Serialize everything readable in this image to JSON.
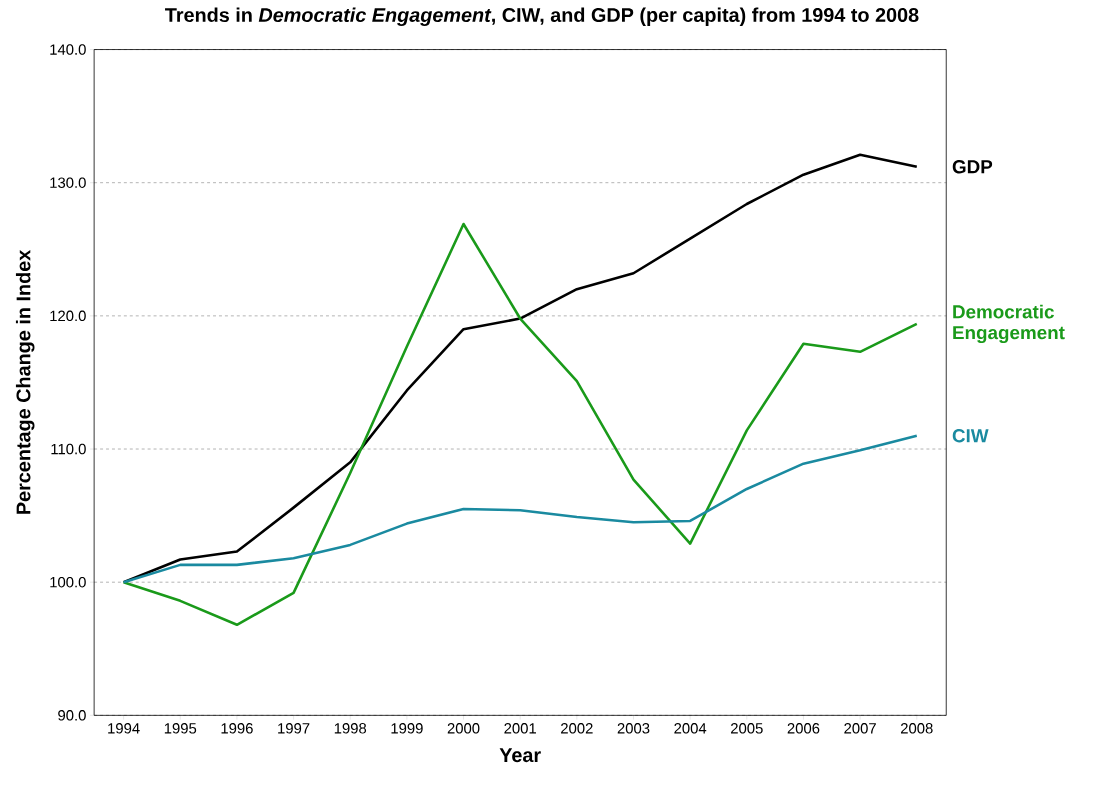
{
  "chart_data": {
    "type": "line",
    "title": "Trends in *Democratic Engagement*, CIW, and GDP (per capita) from 1994 to 2008",
    "xlabel": "Year",
    "ylabel": "Percentage  Change in Index",
    "categories": [
      "1994",
      "1995",
      "1996",
      "1997",
      "1998",
      "1999",
      "2000",
      "2001",
      "2002",
      "2003",
      "2004",
      "2005",
      "2006",
      "2007",
      "2008"
    ],
    "series": [
      {
        "name": "GDP",
        "color": "#000000",
        "values": [
          100,
          101.7,
          102.3,
          105.6,
          109.0,
          114.4,
          119.0,
          119.8,
          122.0,
          123.2,
          125.8,
          128.4,
          130.6,
          132.1,
          131.2
        ]
      },
      {
        "name": "Democratic Engagement",
        "color": "#1a9a1a",
        "values": [
          100,
          98.6,
          96.8,
          99.2,
          108.2,
          117.7,
          126.9,
          119.8,
          115.1,
          107.7,
          102.9,
          111.4,
          117.9,
          117.3,
          119.4
        ]
      },
      {
        "name": "CIW",
        "color": "#1a8aa0",
        "values": [
          100,
          101.3,
          101.3,
          101.8,
          102.8,
          104.4,
          105.5,
          105.4,
          104.9,
          104.5,
          104.6,
          107.0,
          108.9,
          109.9,
          111.0
        ]
      }
    ],
    "ylim": [
      90,
      140
    ],
    "yticks": [
      {
        "value": 90,
        "label": "90.0"
      },
      {
        "value": 100,
        "label": "100.0"
      },
      {
        "value": 110,
        "label": "110.0"
      },
      {
        "value": 120,
        "label": "120.0"
      },
      {
        "value": 130,
        "label": "130.0"
      },
      {
        "value": 140,
        "label": "140.0"
      }
    ],
    "grid": "y",
    "legend": false,
    "marker": "none",
    "line_style": "solid"
  }
}
